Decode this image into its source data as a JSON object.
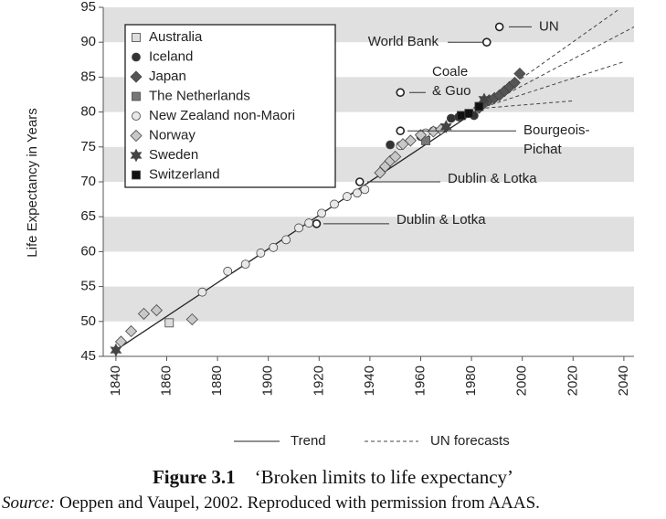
{
  "chart_data": {
    "type": "scatter",
    "y_label": "Life Expectancy in Years",
    "xlim": [
      1835,
      2044
    ],
    "ylim": [
      45,
      95
    ],
    "xticks": [
      1840,
      1860,
      1880,
      1900,
      1920,
      1940,
      1960,
      1980,
      2000,
      2020,
      2040
    ],
    "yticks": [
      45,
      50,
      55,
      60,
      65,
      70,
      75,
      80,
      85,
      90,
      95
    ],
    "bands": true,
    "legend": "upper left",
    "series": [
      {
        "name": "Australia",
        "color": "#dddddd",
        "marker": "square",
        "x": [
          1861
        ],
        "values": [
          49.8
        ]
      },
      {
        "name": "Iceland",
        "color": "#333333",
        "marker": "circle",
        "x": [
          1948,
          1960,
          1972,
          1975,
          1981
        ],
        "values": [
          75.3,
          76.5,
          79.1,
          79.3,
          79.5
        ]
      },
      {
        "name": "Japan",
        "color": "#555555",
        "marker": "diamond",
        "x": [
          1983,
          1985,
          1987,
          1989,
          1991,
          1993,
          1995,
          1997,
          1999
        ],
        "values": [
          80.6,
          81.3,
          81.7,
          82,
          82.4,
          83,
          83.6,
          84.2,
          85.5
        ]
      },
      {
        "name": "The Netherlands",
        "color": "#777777",
        "marker": "square",
        "x": [
          1962
        ],
        "values": [
          75.9
        ]
      },
      {
        "name": "New Zealand non-Maori",
        "color": "#e8e8e8",
        "marker": "circle",
        "x": [
          1874,
          1884,
          1891,
          1897,
          1902,
          1907,
          1912,
          1916,
          1921,
          1926,
          1931,
          1935,
          1938,
          1952,
          1962,
          1965
        ],
        "values": [
          54.2,
          57.2,
          58.2,
          59.8,
          60.6,
          61.7,
          63.4,
          64.1,
          65.5,
          66.8,
          67.9,
          68.4,
          68.9,
          75.2,
          77,
          77.3
        ]
      },
      {
        "name": "Norway",
        "color": "#c8c8c8",
        "marker": "diamond",
        "x": [
          1842,
          1846,
          1851,
          1856,
          1870,
          1944,
          1946,
          1948,
          1950,
          1953,
          1956,
          1960,
          1965,
          1968
        ],
        "values": [
          47.1,
          48.6,
          51.1,
          51.6,
          50.3,
          71.3,
          72.2,
          73,
          73.6,
          75.4,
          75.9,
          76.7,
          77.2,
          77.5
        ]
      },
      {
        "name": "Sweden",
        "color": "#444444",
        "marker": "star",
        "x": [
          1840,
          1970,
          1985
        ],
        "values": [
          45.9,
          77.9,
          81.8
        ]
      },
      {
        "name": "Switzerland",
        "color": "#111111",
        "marker": "square",
        "x": [
          1976,
          1979,
          1983
        ],
        "values": [
          79.5,
          79.8,
          80.8
        ]
      }
    ],
    "trend": {
      "name": "Trend",
      "x": [
        1840,
        1985
      ],
      "values": [
        45.9,
        80.9
      ]
    },
    "forecasts": {
      "name": "UN forecasts",
      "lines": [
        {
          "x": [
            1983,
            2038
          ],
          "values": [
            80.5,
            94.7
          ]
        },
        {
          "x": [
            1983,
            2044
          ],
          "values": [
            80.5,
            92.2
          ]
        },
        {
          "x": [
            1983,
            2040
          ],
          "values": [
            80.5,
            87.2
          ]
        },
        {
          "x": [
            1983,
            2020
          ],
          "values": [
            80.5,
            81.6
          ]
        }
      ]
    },
    "limits": [
      {
        "label": [
          "UN"
        ],
        "x": 1991,
        "value": 92.2
      },
      {
        "label": [
          "World Bank"
        ],
        "x": 1986,
        "value": 90
      },
      {
        "label": [
          "Coale",
          "& Guo"
        ],
        "x": 1952,
        "value": 82.8
      },
      {
        "label": [
          "Bourgeois-",
          "Pichat"
        ],
        "x": 1952,
        "value": 77.3
      },
      {
        "label": [
          "Dublin & Lotka"
        ],
        "x": 1936,
        "value": 70
      },
      {
        "label": [
          "Dublin & Lotka"
        ],
        "x": 1919,
        "value": 64
      }
    ]
  },
  "caption": {
    "figure": "Figure 3.1",
    "title": "‘Broken limits to life expectancy’",
    "source_label": "Source:",
    "source": "Oeppen and Vaupel, 2002. Reproduced with permission from AAAS."
  }
}
